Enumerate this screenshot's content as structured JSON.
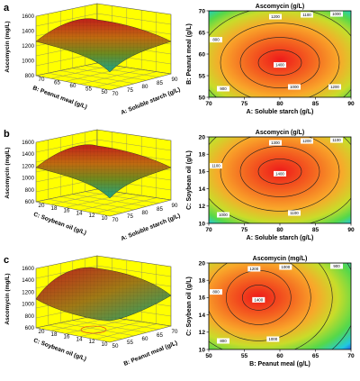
{
  "figure": {
    "panels": [
      {
        "letter": "a",
        "surface": {
          "zlabel": "Ascomycin (mg/L)",
          "zticks": [
            "1600",
            "1400",
            "1200",
            "1000",
            "800"
          ],
          "xlabel": "A: Soluble starch (g/L)",
          "xticks": [
            "70",
            "75",
            "80",
            "85",
            "90"
          ],
          "ylabel": "B: Peanut meal (g/L)",
          "yticks": [
            "70",
            "65",
            "60",
            "55",
            "50"
          ]
        },
        "contour": {
          "title": "Ascomycin (g/L)",
          "xlabel": "A: Soluble starch (g/L)",
          "xticks": [
            "70",
            "75",
            "80",
            "85",
            "90"
          ],
          "ylabel": "B: Peanut meal (g/L)",
          "yticks": [
            "50",
            "55",
            "60",
            "65",
            "70"
          ],
          "xlim": [
            70,
            90
          ],
          "ylim": [
            50,
            70
          ],
          "optimum": [
            80,
            58
          ],
          "labels": [
            "1400",
            "1200",
            "1100",
            "1000",
            "900",
            "800",
            "1000",
            "1200"
          ]
        }
      },
      {
        "letter": "b",
        "surface": {
          "zlabel": "Ascomycin (mg/L)",
          "zticks": [
            "1600",
            "1400",
            "1200",
            "1000",
            "800",
            "600"
          ],
          "xlabel": "A: Soluble starch (g/L)",
          "xticks": [
            "70",
            "75",
            "80",
            "85",
            "90"
          ],
          "ylabel": "C: Soybean oil (g/L)",
          "yticks": [
            "20",
            "18",
            "16",
            "14",
            "12",
            "10"
          ]
        },
        "contour": {
          "title": "Ascomycin (g/L)",
          "xlabel": "A: Soluble starch (g/L)",
          "xticks": [
            "70",
            "75",
            "80",
            "85",
            "90"
          ],
          "ylabel": "C: Soybean oil (g/L)",
          "yticks": [
            "10",
            "12",
            "14",
            "16",
            "18",
            "20"
          ],
          "xlim": [
            70,
            90
          ],
          "ylim": [
            10,
            20
          ],
          "optimum": [
            80,
            16
          ],
          "labels": [
            "1400",
            "1300",
            "1200",
            "1100",
            "1000",
            "1100",
            "1100"
          ]
        }
      },
      {
        "letter": "c",
        "surface": {
          "zlabel": "Ascomycin (mg/L)",
          "zticks": [
            "1600",
            "1400",
            "1200",
            "1000",
            "800",
            "600"
          ],
          "xlabel": "B: Peanut meal (g/L)",
          "xticks": [
            "50",
            "55",
            "60",
            "65",
            "70"
          ],
          "ylabel": "C: Soybean oil (g/L)",
          "yticks": [
            "20",
            "18",
            "16",
            "14",
            "12",
            "10"
          ]
        },
        "contour": {
          "title": "Ascomycin (mg/L)",
          "xlabel": "B: Peanut meal (g/L)",
          "xticks": [
            "50",
            "55",
            "60",
            "65",
            "70"
          ],
          "ylabel": "C: Soybean oil (g/L)",
          "yticks": [
            "10",
            "12",
            "14",
            "16",
            "18",
            "20"
          ],
          "xlim": [
            50,
            70
          ],
          "ylim": [
            10,
            20
          ],
          "optimum": [
            57,
            16
          ],
          "labels": [
            "1400",
            "1200",
            "1000",
            "900",
            "800",
            "800",
            "1000"
          ]
        }
      }
    ]
  },
  "chart_data": [
    {
      "type": "surface",
      "panel": "a",
      "zlabel": "Ascomycin (mg/L)",
      "xlabel": "A: Soluble starch (g/L)",
      "ylabel": "B: Peanut meal (g/L)",
      "xlim": [
        70,
        90
      ],
      "ylim": [
        50,
        70
      ],
      "zlim": [
        800,
        1600
      ]
    },
    {
      "type": "contour",
      "panel": "a",
      "title": "Ascomycin (g/L)",
      "xlabel": "A: Soluble starch (g/L)",
      "ylabel": "B: Peanut meal (g/L)",
      "xlim": [
        70,
        90
      ],
      "ylim": [
        50,
        70
      ],
      "optimum": [
        80,
        58
      ],
      "contour_levels": [
        1400,
        1200,
        1100,
        1000,
        900,
        800
      ]
    },
    {
      "type": "surface",
      "panel": "b",
      "zlabel": "Ascomycin (mg/L)",
      "xlabel": "A: Soluble starch (g/L)",
      "ylabel": "C: Soybean oil (g/L)",
      "xlim": [
        70,
        90
      ],
      "ylim": [
        10,
        20
      ],
      "zlim": [
        600,
        1600
      ]
    },
    {
      "type": "contour",
      "panel": "b",
      "title": "Ascomycin (g/L)",
      "xlabel": "A: Soluble starch (g/L)",
      "ylabel": "C: Soybean oil (g/L)",
      "xlim": [
        70,
        90
      ],
      "ylim": [
        10,
        20
      ],
      "optimum": [
        80,
        16
      ],
      "contour_levels": [
        1400,
        1300,
        1200,
        1100,
        1000
      ]
    },
    {
      "type": "surface",
      "panel": "c",
      "zlabel": "Ascomycin (mg/L)",
      "xlabel": "B: Peanut meal (g/L)",
      "ylabel": "C: Soybean oil (g/L)",
      "xlim": [
        50,
        70
      ],
      "ylim": [
        10,
        20
      ],
      "zlim": [
        600,
        1600
      ]
    },
    {
      "type": "contour",
      "panel": "c",
      "title": "Ascomycin (mg/L)",
      "xlabel": "B: Peanut meal (g/L)",
      "ylabel": "C: Soybean oil (g/L)",
      "xlim": [
        50,
        70
      ],
      "ylim": [
        10,
        20
      ],
      "optimum": [
        57,
        16
      ],
      "contour_levels": [
        1400,
        1200,
        1000,
        900,
        800
      ]
    }
  ]
}
